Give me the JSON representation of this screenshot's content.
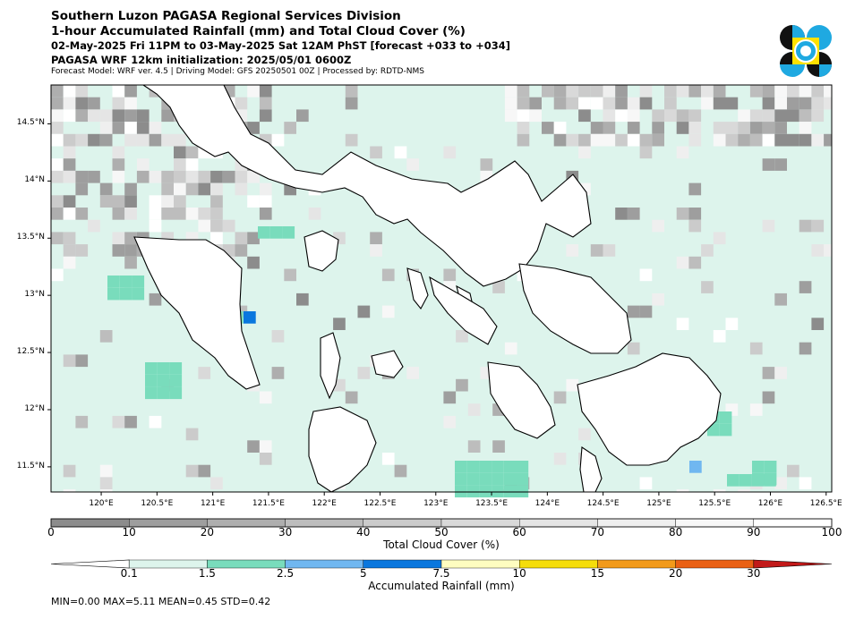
{
  "header": {
    "title_line1": "Southern Luzon PAGASA Regional Services Division",
    "title_line2": "1-hour Accumulated Rainfall (mm) and Total Cloud Cover (%)",
    "title_line3": "02-May-2025 Fri 11PM to 03-May-2025 Sat 12AM PhST [forecast +033 to +034]",
    "title_line4": "PAGASA WRF 12km initialization: 2025/05/01 0600Z",
    "title_line5": "Forecast Model: WRF ver. 4.5 | Driving Model: GFS 20250501 00Z | Processed by: RDTD-NMS"
  },
  "logo": {
    "name": "pagasa-seal",
    "colors": [
      "#111111",
      "#1fa9e1",
      "#ffe100"
    ]
  },
  "map": {
    "lon_range": [
      119.55,
      126.55
    ],
    "lat_range": [
      11.28,
      14.84
    ],
    "x_ticks": [
      "120°E",
      "120.5°E",
      "121°E",
      "121.5°E",
      "122°E",
      "122.5°E",
      "123°E",
      "123.5°E",
      "124°E",
      "124.5°E",
      "125°E",
      "125.5°E",
      "126°E",
      "126.5°E"
    ],
    "y_ticks": [
      "14.5°N",
      "14°N",
      "13.5°N",
      "13°N",
      "12.5°N",
      "12°N",
      "11.5°N"
    ],
    "base_fill": "#ddf4ec",
    "coast_color": "#000000"
  },
  "cloud_colorbar": {
    "title": "Total Cloud Cover (%)",
    "labels": [
      "0",
      "10",
      "20",
      "30",
      "40",
      "50",
      "60",
      "70",
      "80",
      "90",
      "100"
    ],
    "colors": [
      "#8c8c8c",
      "#9e9e9e",
      "#aeaeae",
      "#bdbdbd",
      "#cbcbcb",
      "#d9d9d9",
      "#e5e5e5",
      "#efefef",
      "#f7f7f7",
      "#ffffff"
    ]
  },
  "rain_colorbar": {
    "title": "Accumulated Rainfall (mm)",
    "labels": [
      "0.1",
      "1.5",
      "2.5",
      "5",
      "7.5",
      "10",
      "15",
      "20",
      "30"
    ],
    "colors": [
      "#ddf4ec",
      "#79dcbc",
      "#70b7f0",
      "#0a77de",
      "#fefdc0",
      "#f5dd0b",
      "#f29a1a",
      "#ea6014",
      "#c21919"
    ]
  },
  "stats": {
    "text": "MIN=0.00   MAX=5.11   MEAN=0.45   STD=0.42"
  }
}
